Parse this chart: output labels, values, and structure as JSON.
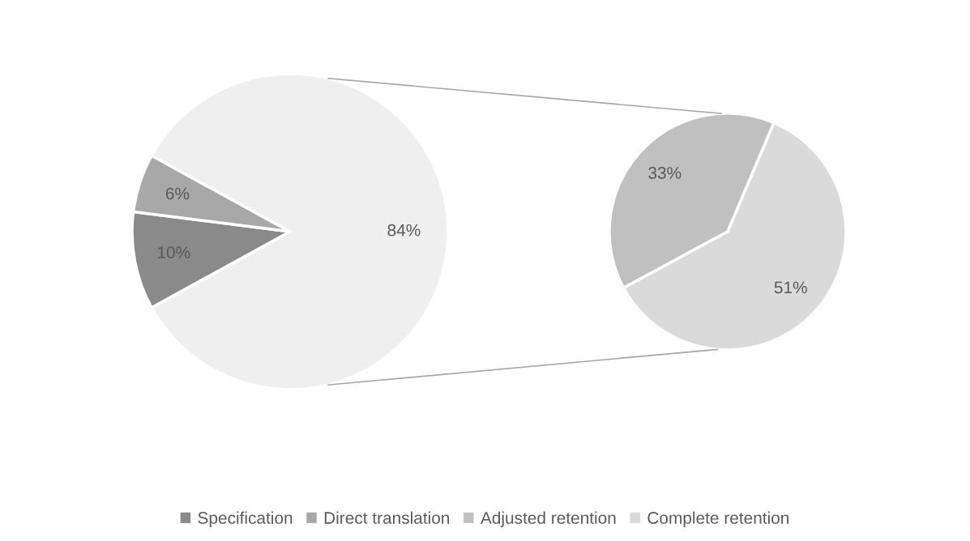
{
  "chart_data": [
    {
      "type": "pie",
      "categories": [
        "Specification",
        "Direct translation",
        null
      ],
      "values": [
        10,
        6,
        84
      ],
      "colors": [
        "#8a8a8a",
        "#a8a8a8",
        "#efefef"
      ],
      "value_labels": [
        "10%",
        "6%",
        "84%"
      ],
      "legend": "bottom"
    },
    {
      "type": "pie",
      "categories": [
        "Adjusted retention",
        "Complete retention"
      ],
      "values": [
        33,
        51
      ],
      "colors": [
        "#c0c0c0",
        "#dadada"
      ],
      "value_labels": [
        "33%",
        "51%"
      ],
      "legend": "bottom"
    }
  ]
}
